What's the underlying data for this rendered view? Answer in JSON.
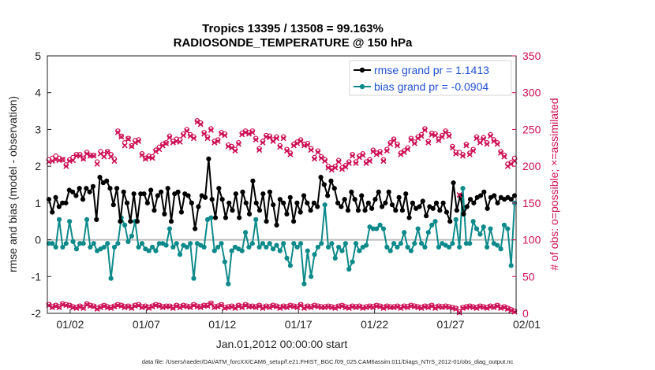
{
  "chart_data": {
    "type": "line",
    "title_line1": "Tropics 13395 / 13508 = 99.163%",
    "title_line2": "RADIOSONDE_TEMPERATURE @ 150 hPa",
    "xlabel": "Jan.01,2012 00:00:00 start",
    "ylabel_left": "rmse and bias (model - observation)",
    "ylabel_right": "# of obs: o=possible; ×=assimilated",
    "footnote": "data file: /Users/raeder/DAI/ATM_forcXX/CAM6_setup/f.e21.FHIST_BGC.f09_025.CAM6assim.011/Diags_NTrS_2012-01/obs_diag_output.nc",
    "xlim": [
      0.5,
      31.3
    ],
    "ylim_left": [
      -2,
      5
    ],
    "ylim_right": [
      0,
      350
    ],
    "xticks": [
      {
        "value": 2,
        "label": "01/02"
      },
      {
        "value": 7,
        "label": "01/07"
      },
      {
        "value": 12,
        "label": "01/12"
      },
      {
        "value": 17,
        "label": "01/17"
      },
      {
        "value": 22,
        "label": "01/22"
      },
      {
        "value": 27,
        "label": "01/27"
      },
      {
        "value": 32,
        "label": "02/01"
      }
    ],
    "yticks_left": [
      "-2",
      "-1",
      "0",
      "1",
      "2",
      "3",
      "4",
      "5"
    ],
    "yticks_right": [
      "0",
      "50",
      "100",
      "150",
      "200",
      "250",
      "300",
      "350"
    ],
    "legend": [
      {
        "label": "rmse grand pr = 1.1413",
        "color": "#000000"
      },
      {
        "label": "bias grand pr = -0.0904",
        "color": "#0e8a8a"
      }
    ],
    "colors": {
      "rmse": "#000000",
      "bias": "#0e8a8a",
      "obs": "#cc1155",
      "zero_line": "#bbbbbb",
      "legend_text": "#1f4fd1"
    },
    "series": [
      {
        "name": "rmse",
        "axis": "left",
        "values": [
          1.1,
          0.75,
          1.15,
          0.9,
          1.0,
          1.0,
          1.35,
          1.3,
          1.2,
          1.4,
          1.1,
          1.4,
          1.3,
          1.45,
          0.55,
          1.7,
          1.55,
          1.6,
          1.4,
          0.95,
          1.4,
          0.5,
          1.3,
          1.0,
          0.5,
          1.25,
          0.5,
          1.25,
          1.25,
          1.0,
          1.35,
          0.8,
          1.2,
          1.3,
          0.7,
          1.4,
          0.5,
          1.25,
          1.3,
          0.75,
          1.25,
          1.2,
          1.0,
          0.3,
          0.9,
          1.2,
          1.15,
          2.2,
          1.1,
          0.6,
          1.4,
          1.1,
          0.6,
          1.0,
          0.8,
          1.25,
          0.6,
          1.3,
          1.0,
          0.7,
          1.6,
          1.0,
          0.8,
          1.25,
          0.5,
          1.3,
          0.95,
          0.4,
          1.1,
          1.0,
          0.7,
          1.15,
          0.5,
          1.0,
          0.75,
          1.2,
          1.0,
          0.8,
          1.0,
          0.9,
          1.7,
          1.5,
          1.2,
          1.6,
          1.4,
          1.0,
          0.9,
          1.1,
          0.8,
          1.3,
          1.1,
          0.8,
          1.2,
          0.8,
          1.0,
          0.85,
          1.1,
          1.3,
          0.9,
          1.0,
          1.3,
          0.95,
          0.8,
          1.15,
          0.8,
          1.25,
          0.6,
          1.0,
          0.85,
          0.9,
          1.05,
          0.65,
          0.9,
          0.85,
          1.0,
          0.8,
          1.0,
          0.75,
          0.5,
          1.55,
          0.8,
          1.2,
          0.7,
          0.9,
          1.1,
          1.0,
          1.15,
          1.2,
          1.3,
          0.85,
          1.15,
          1.2,
          1.0,
          1.15,
          1.1,
          1.15,
          1.1,
          1.2
        ]
      },
      {
        "name": "bias",
        "axis": "left",
        "values": [
          -0.1,
          -0.1,
          -0.2,
          0.55,
          -0.2,
          -0.1,
          0.5,
          -0.05,
          -0.25,
          -0.1,
          -0.1,
          0.55,
          -0.2,
          -0.1,
          -0.3,
          -0.25,
          -0.2,
          -0.1,
          -1.05,
          -0.2,
          -0.1,
          0.6,
          0.4,
          -0.05,
          0.1,
          0.5,
          -0.2,
          -0.1,
          -0.25,
          -0.3,
          -0.2,
          -0.3,
          -0.1,
          -0.1,
          -0.15,
          0.3,
          -0.2,
          -0.1,
          -0.4,
          -0.15,
          -0.2,
          -0.1,
          -1.05,
          -0.1,
          -0.15,
          -0.2,
          0.55,
          0.6,
          -0.3,
          -0.2,
          -0.1,
          -0.6,
          -1.2,
          -0.3,
          -0.2,
          -0.25,
          -0.3,
          0.2,
          -0.2,
          -0.1,
          0.55,
          -0.2,
          -0.1,
          -0.2,
          -0.1,
          -0.25,
          -0.15,
          -0.3,
          -0.1,
          -0.5,
          -0.7,
          -0.1,
          -0.2,
          -0.1,
          -1.2,
          -0.3,
          -1.0,
          -0.4,
          -0.2,
          -0.1,
          0.95,
          -0.2,
          -0.1,
          -0.5,
          -0.2,
          -0.3,
          -0.1,
          -0.8,
          -0.6,
          -0.1,
          -0.3,
          -0.2,
          -0.15,
          0.35,
          0.3,
          0.3,
          0.4,
          0.3,
          -0.2,
          -0.3,
          -0.1,
          -0.2,
          -0.1,
          0.2,
          -0.2,
          -0.3,
          -0.1,
          0.3,
          -0.1,
          -0.2,
          0.2,
          0.4,
          0.5,
          -0.2,
          -0.1,
          -0.15,
          -0.2,
          -0.1,
          0.55,
          -0.2,
          1.4,
          -0.1,
          -0.1,
          0.5,
          0.3,
          0.15,
          0.35,
          -0.2,
          0.3,
          -0.1,
          -0.15,
          -0.25,
          0.4,
          0.3,
          -0.7,
          1.0
        ]
      },
      {
        "name": "obs_possible",
        "axis": "right",
        "marker": "o",
        "values": [
          209,
          211,
          214,
          211,
          209,
          202,
          209,
          212,
          216,
          216,
          211,
          219,
          215,
          215,
          206,
          220,
          216,
          220,
          216,
          210,
          248,
          241,
          232,
          238,
          228,
          235,
          236,
          217,
          211,
          214,
          213,
          222,
          226,
          230,
          232,
          241,
          234,
          237,
          236,
          244,
          250,
          243,
          240,
          262,
          259,
          246,
          240,
          251,
          234,
          236,
          246,
          244,
          229,
          227,
          223,
          232,
          245,
          248,
          246,
          248,
          238,
          224,
          234,
          242,
          241,
          236,
          240,
          228,
          240,
          223,
          218,
          230,
          233,
          236,
          230,
          231,
          224,
          212,
          221,
          213,
          209,
          200,
          197,
          200,
          208,
          198,
          201,
          206,
          216,
          206,
          214,
          217,
          206,
          209,
          222,
          218,
          220,
          209,
          223,
          232,
          237,
          230,
          218,
          221,
          225,
          238,
          233,
          240,
          243,
          251,
          234,
          245,
          244,
          237,
          242,
          248,
          243,
          227,
          219,
          219,
          216,
          230,
          218,
          223,
          240,
          234,
          239,
          232,
          243,
          236,
          232,
          220,
          215,
          203,
          205,
          211
        ]
      },
      {
        "name": "obs_assimilated",
        "axis": "right",
        "marker": "x",
        "values": [
          206,
          207,
          209,
          208,
          209,
          200,
          207,
          208,
          214,
          214,
          210,
          217,
          214,
          214,
          203,
          217,
          213,
          219,
          213,
          207,
          246,
          240,
          228,
          237,
          227,
          232,
          234,
          215,
          210,
          212,
          211,
          220,
          223,
          228,
          231,
          239,
          232,
          234,
          233,
          242,
          248,
          241,
          238,
          260,
          257,
          244,
          238,
          249,
          232,
          234,
          244,
          242,
          227,
          225,
          221,
          230,
          243,
          246,
          244,
          246,
          236,
          222,
          232,
          240,
          239,
          234,
          238,
          226,
          238,
          221,
          216,
          228,
          231,
          234,
          228,
          229,
          222,
          210,
          219,
          211,
          207,
          198,
          195,
          198,
          206,
          196,
          199,
          204,
          214,
          204,
          212,
          215,
          204,
          207,
          220,
          216,
          218,
          207,
          221,
          230,
          235,
          228,
          216,
          219,
          223,
          236,
          231,
          238,
          241,
          249,
          232,
          243,
          242,
          235,
          240,
          246,
          241,
          225,
          217,
          161,
          214,
          228,
          216,
          221,
          238,
          232,
          237,
          230,
          241,
          234,
          230,
          218,
          213,
          200,
          203,
          207
        ]
      },
      {
        "name": "obs_lower_possible",
        "axis": "right",
        "marker": "o",
        "values": [
          12,
          9,
          11,
          9,
          13,
          12,
          11,
          9,
          8,
          10,
          8,
          13,
          11,
          10,
          7,
          9,
          11,
          9,
          8,
          10,
          12,
          11,
          9,
          10,
          8,
          11,
          12,
          9,
          10,
          8,
          10,
          12,
          11,
          9,
          10,
          10,
          8,
          11,
          9,
          11,
          10,
          9,
          12,
          10,
          9,
          11,
          11,
          14,
          9,
          10,
          12,
          8,
          9,
          10,
          8,
          11,
          9,
          12,
          10,
          10,
          9,
          11,
          8,
          10,
          9,
          11,
          10,
          8,
          10,
          9,
          11,
          10,
          9,
          12,
          8,
          10,
          9,
          11,
          10,
          9,
          9,
          10,
          9,
          8,
          10,
          11,
          9,
          8,
          10,
          9,
          10,
          8,
          9,
          10,
          9,
          11,
          10,
          8,
          10,
          9,
          9,
          10,
          8,
          10,
          9,
          11,
          10,
          9,
          8,
          10,
          9,
          11,
          8,
          10,
          9,
          10,
          9,
          8,
          7,
          2,
          8,
          9,
          10,
          9,
          8,
          10,
          9,
          8,
          10,
          9,
          11,
          8,
          9,
          7,
          5,
          3
        ]
      },
      {
        "name": "obs_lower_assimilated",
        "axis": "right",
        "marker": "x",
        "values": [
          11,
          8,
          10,
          8,
          12,
          11,
          10,
          8,
          7,
          9,
          7,
          12,
          10,
          9,
          6,
          8,
          10,
          8,
          7,
          9,
          11,
          10,
          8,
          9,
          7,
          10,
          11,
          8,
          9,
          7,
          9,
          11,
          10,
          8,
          9,
          9,
          7,
          10,
          8,
          10,
          9,
          8,
          11,
          9,
          8,
          10,
          10,
          13,
          8,
          9,
          11,
          7,
          8,
          9,
          7,
          10,
          8,
          11,
          9,
          9,
          8,
          10,
          7,
          9,
          8,
          10,
          9,
          7,
          9,
          8,
          10,
          9,
          8,
          11,
          7,
          9,
          8,
          10,
          9,
          8,
          8,
          9,
          8,
          7,
          9,
          10,
          8,
          7,
          9,
          8,
          9,
          7,
          8,
          9,
          8,
          10,
          9,
          7,
          9,
          8,
          8,
          9,
          7,
          9,
          8,
          10,
          9,
          8,
          7,
          9,
          8,
          10,
          7,
          9,
          8,
          9,
          8,
          7,
          6,
          1,
          7,
          8,
          9,
          8,
          7,
          9,
          8,
          7,
          9,
          8,
          10,
          7,
          8,
          6,
          4,
          2
        ]
      }
    ]
  }
}
